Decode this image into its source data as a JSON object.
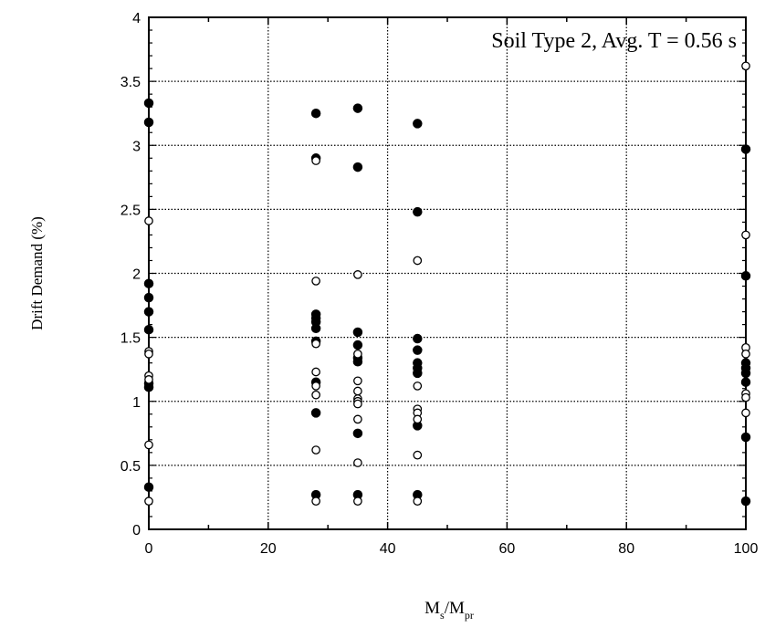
{
  "chart_data": {
    "type": "scatter",
    "annotation": "Soil Type 2, Avg. T = 0.56 s",
    "xlabel_main": "M",
    "xlabel_sub1": "s",
    "xlabel_slash": "/M",
    "xlabel_sub2": "pr",
    "ylabel": "Drift Demand (%)",
    "xlim": [
      0,
      100
    ],
    "ylim": [
      0,
      4
    ],
    "xticks": [
      0,
      20,
      40,
      60,
      80,
      100
    ],
    "yticks": [
      0,
      0.5,
      1,
      1.5,
      2,
      2.5,
      3,
      3.5,
      4
    ],
    "xtick_labels": [
      "0",
      "20",
      "40",
      "60",
      "80",
      "100"
    ],
    "ytick_labels": [
      "0",
      "0.5",
      "1",
      "1.5",
      "2",
      "2.5",
      "3",
      "3.5",
      "4"
    ],
    "grid": true,
    "grid_style": "dotted",
    "marker_color": "#000000",
    "series": [
      {
        "marker": "filled-circle",
        "points": [
          [
            0,
            3.33
          ],
          [
            0,
            3.18
          ],
          [
            0,
            1.92
          ],
          [
            0,
            1.81
          ],
          [
            0,
            1.7
          ],
          [
            0,
            1.56
          ],
          [
            0,
            1.14
          ],
          [
            0,
            1.11
          ],
          [
            0,
            0.33
          ],
          [
            28,
            3.25
          ],
          [
            28,
            2.9
          ],
          [
            28,
            1.68
          ],
          [
            28,
            1.65
          ],
          [
            28,
            1.62
          ],
          [
            28,
            1.57
          ],
          [
            28,
            1.47
          ],
          [
            28,
            1.15
          ],
          [
            28,
            0.91
          ],
          [
            28,
            0.27
          ],
          [
            35,
            3.29
          ],
          [
            35,
            2.83
          ],
          [
            35,
            1.54
          ],
          [
            35,
            1.44
          ],
          [
            35,
            1.34
          ],
          [
            35,
            1.31
          ],
          [
            35,
            0.75
          ],
          [
            35,
            0.27
          ],
          [
            45,
            3.17
          ],
          [
            45,
            2.48
          ],
          [
            45,
            1.49
          ],
          [
            45,
            1.4
          ],
          [
            45,
            1.3
          ],
          [
            45,
            1.26
          ],
          [
            45,
            1.22
          ],
          [
            45,
            0.81
          ],
          [
            45,
            0.27
          ],
          [
            100,
            2.97
          ],
          [
            100,
            1.98
          ],
          [
            100,
            1.3
          ],
          [
            100,
            1.26
          ],
          [
            100,
            1.22
          ],
          [
            100,
            1.15
          ],
          [
            100,
            0.72
          ],
          [
            100,
            0.22
          ]
        ]
      },
      {
        "marker": "open-circle",
        "points": [
          [
            0,
            2.41
          ],
          [
            0,
            1.39
          ],
          [
            0,
            1.37
          ],
          [
            0,
            1.2
          ],
          [
            0,
            1.17
          ],
          [
            0,
            0.66
          ],
          [
            0,
            0.22
          ],
          [
            28,
            2.88
          ],
          [
            28,
            1.94
          ],
          [
            28,
            1.45
          ],
          [
            28,
            1.23
          ],
          [
            28,
            1.12
          ],
          [
            28,
            1.05
          ],
          [
            28,
            0.62
          ],
          [
            28,
            0.22
          ],
          [
            35,
            1.99
          ],
          [
            35,
            1.37
          ],
          [
            35,
            1.16
          ],
          [
            35,
            1.08
          ],
          [
            35,
            1.02
          ],
          [
            35,
            1.0
          ],
          [
            35,
            0.98
          ],
          [
            35,
            0.86
          ],
          [
            35,
            0.52
          ],
          [
            35,
            0.22
          ],
          [
            45,
            2.1
          ],
          [
            45,
            1.12
          ],
          [
            45,
            0.94
          ],
          [
            45,
            0.91
          ],
          [
            45,
            0.86
          ],
          [
            45,
            0.58
          ],
          [
            45,
            0.22
          ],
          [
            100,
            3.62
          ],
          [
            100,
            2.3
          ],
          [
            100,
            1.42
          ],
          [
            100,
            1.37
          ],
          [
            100,
            1.06
          ],
          [
            100,
            1.03
          ],
          [
            100,
            0.91
          ]
        ]
      }
    ]
  }
}
